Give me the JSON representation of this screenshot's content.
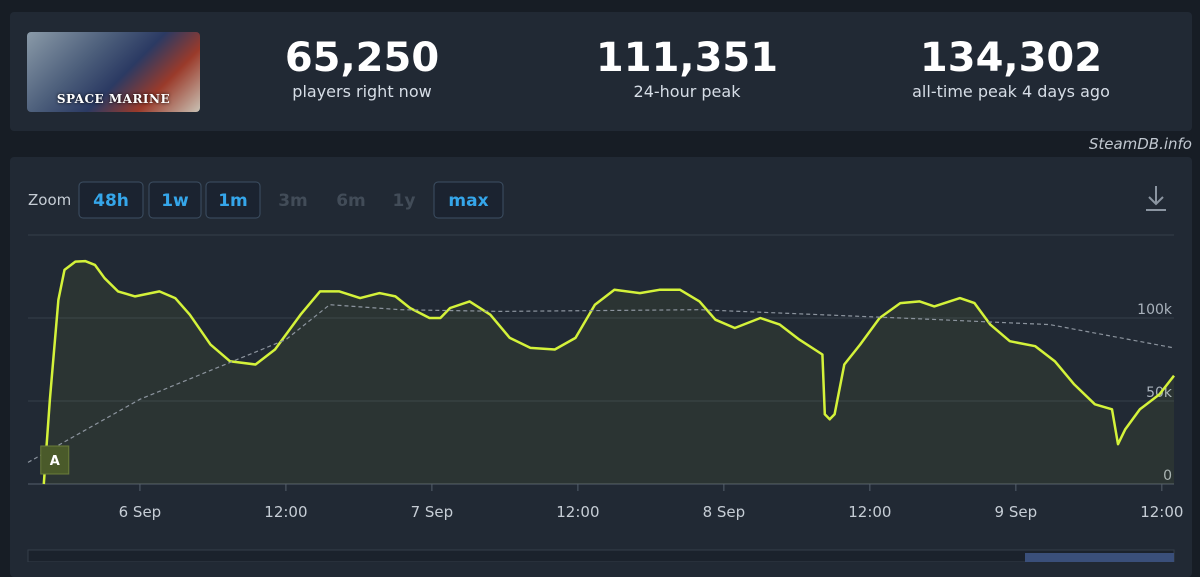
{
  "header": {
    "game_logo": "SPACE MARINE",
    "stats": [
      {
        "value": "65,250",
        "label": "players right now"
      },
      {
        "value": "111,351",
        "label": "24-hour peak"
      },
      {
        "value": "134,302",
        "label": "all-time peak 4 days ago"
      }
    ],
    "credit": "SteamDB.info"
  },
  "zoom": {
    "label": "Zoom",
    "buttons": [
      {
        "label": "48h",
        "enabled": true
      },
      {
        "label": "1w",
        "enabled": true
      },
      {
        "label": "1m",
        "enabled": true
      },
      {
        "label": "3m",
        "enabled": false
      },
      {
        "label": "6m",
        "enabled": false
      },
      {
        "label": "1y",
        "enabled": false
      },
      {
        "label": "max",
        "enabled": true
      }
    ]
  },
  "chart_data": {
    "type": "line",
    "xlim": [
      -9.2,
      85.0
    ],
    "ylim": [
      0,
      150000
    ],
    "xticks": [
      {
        "value": 0,
        "label": "6 Sep"
      },
      {
        "value": 12,
        "label": "12:00"
      },
      {
        "value": 24,
        "label": "7 Sep"
      },
      {
        "value": 36,
        "label": "12:00"
      },
      {
        "value": 48,
        "label": "8 Sep"
      },
      {
        "value": 60,
        "label": "12:00"
      },
      {
        "value": 72,
        "label": "9 Sep"
      },
      {
        "value": 84,
        "label": "12:00"
      }
    ],
    "yticks": [
      0,
      {
        "value": 50000,
        "label": "50k"
      },
      {
        "value": 100000,
        "label": "100k"
      }
    ],
    "grid": true,
    "annotations": [
      {
        "x": -7.0,
        "label": "A"
      }
    ],
    "series": [
      {
        "color": "#d4f23a",
        "dashed": false,
        "fill": true,
        "x": [
          -7.9,
          -7.4,
          -6.7,
          -6.2,
          -5.3,
          -4.5,
          -3.7,
          -2.9,
          -1.8,
          -0.4,
          1.6,
          2.9,
          4.1,
          5.8,
          7.4,
          9.5,
          11.1,
          13.2,
          14.8,
          16.4,
          18.1,
          19.7,
          21.0,
          22.2,
          23.8,
          24.7,
          25.5,
          27.1,
          28.8,
          30.4,
          32.1,
          34.1,
          35.8,
          37.4,
          39.0,
          41.1,
          42.7,
          44.4,
          46.0,
          47.3,
          48.9,
          51.0,
          52.6,
          54.2,
          56.1,
          56.3,
          56.7,
          57.1,
          57.9,
          59.2,
          60.8,
          62.5,
          64.1,
          65.3,
          67.4,
          68.6,
          69.9,
          71.5,
          73.6,
          75.2,
          76.8,
          78.5,
          79.9,
          80.4,
          81.0,
          82.2,
          83.8,
          85.0
        ],
        "values": [
          0,
          51000,
          111000,
          129000,
          134000,
          134302,
          132000,
          124000,
          116000,
          113000,
          116000,
          112000,
          102000,
          84000,
          74000,
          72000,
          81000,
          102000,
          116000,
          116000,
          112000,
          115000,
          113000,
          106000,
          100000,
          100000,
          106000,
          110000,
          102000,
          88000,
          82000,
          81000,
          88000,
          108000,
          117000,
          115000,
          117000,
          117000,
          110000,
          99000,
          94000,
          100000,
          96000,
          87000,
          78000,
          42000,
          39000,
          42000,
          72000,
          84000,
          100000,
          109000,
          110000,
          107000,
          112000,
          109000,
          96000,
          86000,
          83000,
          74000,
          60000,
          48000,
          45000,
          24000,
          33000,
          45000,
          54000,
          65250
        ]
      },
      {
        "color": "#8c949e",
        "dashed": true,
        "fill": false,
        "x": [
          -9.2,
          0,
          12,
          15.6,
          21.4,
          29.6,
          46.0,
          62.5,
          74.8,
          85.0
        ],
        "values": [
          13000,
          51000,
          87000,
          108000,
          105000,
          104000,
          105000,
          100000,
          96000,
          82000
        ]
      }
    ]
  }
}
